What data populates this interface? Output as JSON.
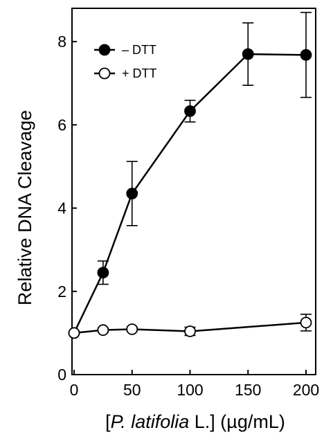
{
  "chart_data": {
    "type": "line",
    "title": "",
    "xlabel_prefix": "[",
    "xlabel_italic": "P. latifolia",
    "xlabel_suffix": " L.] (µg/mL)",
    "ylabel": "Relative DNA Cleavage",
    "xlim": [
      0,
      200
    ],
    "ylim": [
      0,
      8.8
    ],
    "x_ticks": [
      0,
      50,
      100,
      150,
      200
    ],
    "x_tick_labels": [
      "0",
      "50",
      "100",
      "150",
      "200"
    ],
    "y_ticks": [
      0,
      2,
      4,
      6,
      8
    ],
    "y_tick_labels": [
      "0",
      "2",
      "4",
      "6",
      "8"
    ],
    "grid": false,
    "legend_position": "top-left",
    "series": [
      {
        "name": "– DTT",
        "marker": "filled-circle",
        "color": "#000000",
        "x": [
          0,
          25,
          50,
          100,
          150,
          200
        ],
        "values": [
          1.0,
          2.45,
          4.35,
          6.33,
          7.7,
          7.68
        ],
        "errors": [
          0.0,
          0.28,
          0.77,
          0.26,
          0.75,
          1.02
        ]
      },
      {
        "name": "+ DTT",
        "marker": "open-circle",
        "color": "#000000",
        "x": [
          0,
          25,
          50,
          100,
          200
        ],
        "values": [
          1.0,
          1.07,
          1.09,
          1.04,
          1.25
        ],
        "errors": [
          0.0,
          0.05,
          0.05,
          0.1,
          0.2
        ]
      }
    ]
  }
}
